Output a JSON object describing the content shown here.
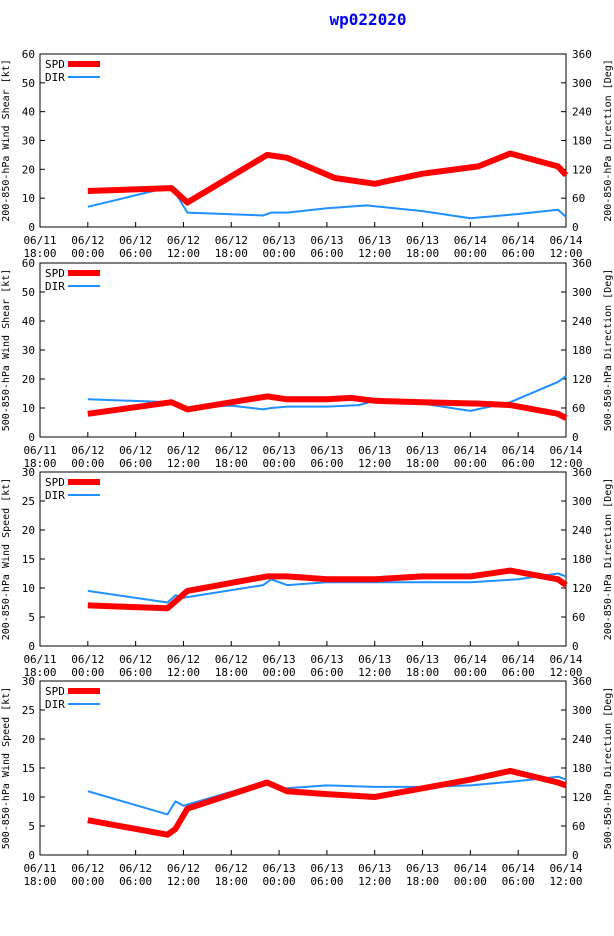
{
  "title": "wp022020",
  "legend": {
    "spd": "SPD",
    "dir": "DIR"
  },
  "colors": {
    "spd": "#ff0000",
    "dir": "#1e90ff",
    "title": "#0000ff",
    "axis": "#000000",
    "grid": "#999999"
  },
  "x_ticks": [
    {
      "date": "06/11",
      "time": "18:00"
    },
    {
      "date": "06/12",
      "time": "00:00"
    },
    {
      "date": "06/12",
      "time": "06:00"
    },
    {
      "date": "06/12",
      "time": "12:00"
    },
    {
      "date": "06/12",
      "time": "18:00"
    },
    {
      "date": "06/13",
      "time": "00:00"
    },
    {
      "date": "06/13",
      "time": "06:00"
    },
    {
      "date": "06/13",
      "time": "12:00"
    },
    {
      "date": "06/13",
      "time": "18:00"
    },
    {
      "date": "06/14",
      "time": "00:00"
    },
    {
      "date": "06/14",
      "time": "06:00"
    },
    {
      "date": "06/14",
      "time": "12:00"
    }
  ],
  "chart_data": [
    {
      "type": "line",
      "ylabel": "200-850-hPa Wind Shear [kt]",
      "y2label": "200-850-hPa Direction [Deg]",
      "ylim": [
        0,
        60
      ],
      "yticks": [
        0,
        10,
        20,
        30,
        40,
        50,
        60
      ],
      "y2lim": [
        0,
        360
      ],
      "y2ticks": [
        0,
        60,
        120,
        180,
        240,
        300,
        360
      ],
      "xlim": [
        0,
        66
      ],
      "series": [
        {
          "name": "SPD",
          "x": [
            6,
            16.5,
            18.5,
            28.5,
            31,
            37,
            42,
            48,
            55,
            59,
            65,
            66
          ],
          "values": [
            12.5,
            13.5,
            8.5,
            25,
            24,
            17,
            15,
            18.5,
            21,
            25.5,
            21,
            18
          ]
        },
        {
          "name": "DIR",
          "x": [
            6,
            16.5,
            18.5,
            28,
            29,
            31,
            36,
            41,
            48,
            54,
            60,
            65,
            66
          ],
          "values": [
            42,
            84,
            30,
            24,
            30,
            30,
            39,
            45,
            33,
            18,
            27,
            36,
            21
          ]
        }
      ]
    },
    {
      "type": "line",
      "ylabel": "500-850-hPa Wind Shear [kt]",
      "y2label": "500-850-hPa Direction [Deg]",
      "ylim": [
        0,
        60
      ],
      "yticks": [
        0,
        10,
        20,
        30,
        40,
        50,
        60
      ],
      "y2lim": [
        0,
        360
      ],
      "y2ticks": [
        0,
        60,
        120,
        180,
        240,
        300,
        360
      ],
      "xlim": [
        0,
        66
      ],
      "series": [
        {
          "name": "SPD",
          "x": [
            6,
            16.5,
            18.5,
            28.5,
            31,
            36,
            39,
            42,
            48,
            55,
            59,
            65,
            66
          ],
          "values": [
            8,
            12,
            9.5,
            14,
            13,
            13,
            13.5,
            12.5,
            12,
            11.5,
            11,
            8,
            6.5
          ]
        },
        {
          "name": "DIR",
          "x": [
            6,
            16.5,
            18,
            24,
            28,
            29,
            31,
            36,
            40,
            42,
            48,
            54,
            59,
            65,
            66
          ],
          "values": [
            78,
            72,
            60,
            65,
            57,
            60,
            63,
            63,
            66,
            75,
            69,
            54,
            72,
            114,
            126
          ]
        }
      ]
    },
    {
      "type": "line",
      "ylabel": "200-850-hPa Wind Speed [kt]",
      "y2label": "200-850-hPa Direction [Deg]",
      "ylim": [
        0,
        30
      ],
      "yticks": [
        0,
        5,
        10,
        15,
        20,
        25,
        30
      ],
      "y2lim": [
        0,
        360
      ],
      "y2ticks": [
        0,
        60,
        120,
        180,
        240,
        300,
        360
      ],
      "xlim": [
        0,
        66
      ],
      "series": [
        {
          "name": "SPD",
          "x": [
            6,
            16,
            18.5,
            28.5,
            31,
            36,
            42,
            48,
            54,
            59,
            65,
            66
          ],
          "values": [
            7,
            6.5,
            9.5,
            12,
            12,
            11.5,
            11.5,
            12,
            12,
            13,
            11.5,
            10.5
          ]
        },
        {
          "name": "DIR",
          "x": [
            6,
            16,
            17,
            18,
            28,
            29,
            31,
            36,
            42,
            48,
            54,
            60,
            65,
            66
          ],
          "values": [
            114,
            90,
            105,
            100,
            126,
            138,
            126,
            132,
            132,
            132,
            132,
            138,
            150,
            144
          ]
        }
      ]
    },
    {
      "type": "line",
      "ylabel": "500-850-hPa Wind Speed [kt]",
      "y2label": "500-850-hPa Direction [Deg]",
      "ylim": [
        0,
        30
      ],
      "yticks": [
        0,
        5,
        10,
        15,
        20,
        25,
        30
      ],
      "y2lim": [
        0,
        360
      ],
      "y2ticks": [
        0,
        60,
        120,
        180,
        240,
        300,
        360
      ],
      "xlim": [
        0,
        66
      ],
      "series": [
        {
          "name": "SPD",
          "x": [
            6,
            16,
            17,
            18.5,
            28.5,
            31,
            36,
            42,
            48,
            54,
            59,
            65,
            66
          ],
          "values": [
            6,
            3.5,
            4.5,
            8,
            12.5,
            11,
            10.5,
            10,
            11.5,
            13,
            14.5,
            12.5,
            12
          ]
        },
        {
          "name": "DIR",
          "x": [
            6,
            16,
            17,
            18,
            28,
            29,
            31,
            36,
            42,
            48,
            54,
            60,
            65,
            66
          ],
          "values": [
            132,
            84,
            111,
            102,
            150,
            144,
            138,
            144,
            141,
            141,
            144,
            153,
            162,
            156
          ]
        }
      ]
    }
  ]
}
